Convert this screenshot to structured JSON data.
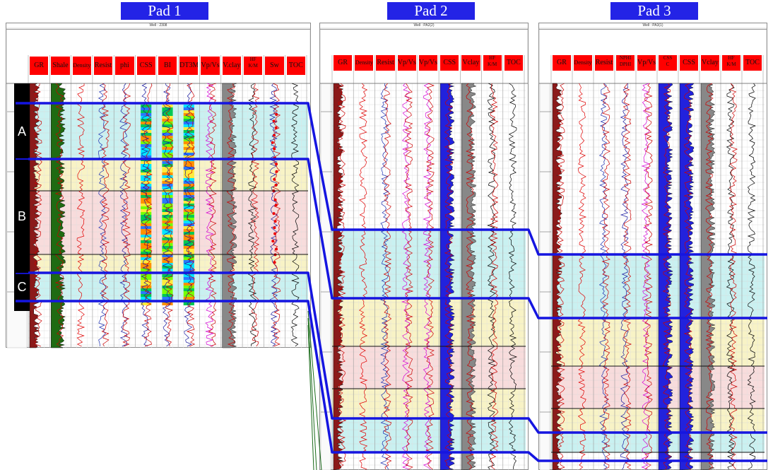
{
  "pads": [
    {
      "id": "pad1",
      "title": "Pad 1",
      "well_header": "Well : 2308",
      "tracks": [
        "GR",
        "Shale",
        "Density",
        "Resist",
        "phi",
        "CSS",
        "BI",
        "DT3M",
        "Vp/Vs",
        "V.clay",
        "HF\nK/M",
        "Sw",
        "TOC"
      ]
    },
    {
      "id": "pad2",
      "title": "Pad 2",
      "well_header": "Well : PA2(2)",
      "tracks": [
        "GR",
        "Density",
        "Resist",
        "Vp/Vs",
        "Vp/Vs",
        "CSS",
        "Vclay",
        "HF\nK/M",
        "TOC"
      ]
    },
    {
      "id": "pad3",
      "title": "Pad 3",
      "well_header": "Well : PA3(1)",
      "tracks": [
        "GR",
        "Density",
        "Resist",
        "NPHI\nDPHI",
        "Vp/Vs",
        "CSS\nC",
        "CSS",
        "Vclay",
        "HF\nK/M",
        "TOC"
      ]
    }
  ],
  "zones": [
    "A",
    "B",
    "C"
  ],
  "colors": {
    "pad_title_bg": "#2323e6",
    "track_header": "#ff0000",
    "correlation_line": "#1515e0",
    "zone_label_bg": "#000000",
    "band_cyan": "#c9f1f1",
    "band_yellow": "#f8f3c6",
    "band_pink": "#f8dcdc",
    "gr_fill": "#8b1a1a",
    "shale_fill": "#1f6b12",
    "clay_fill": "#888888",
    "css_fill": "#2222dd"
  }
}
